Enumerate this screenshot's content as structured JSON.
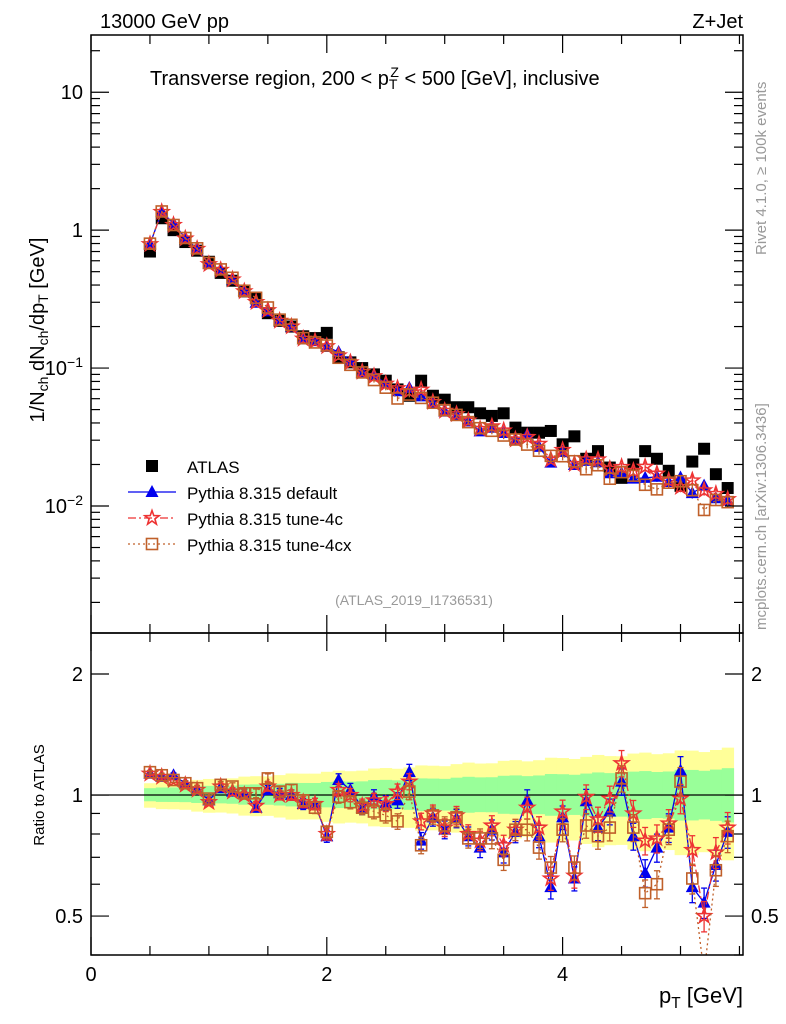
{
  "header": {
    "energy_label": "13000 GeV pp",
    "process_label": "Z+Jet",
    "analysis_id": "(ATLAS_2019_I1736531)",
    "rivet_label": "Rivet 4.1.0, ≥ 100k events",
    "mcplots_label": "mcplots.cern.ch [arXiv:1306.3436]"
  },
  "chart_data": {
    "type": "scatter",
    "title_segments": [
      {
        "t": "Transverse region, 200 < p",
        "s": ""
      },
      {
        "t": "T",
        "s": "sub"
      },
      {
        "t": "Z",
        "s": "sup"
      },
      {
        "t": " < 500 [GeV], inclusive",
        "s": ""
      }
    ],
    "ylabel_segments": [
      {
        "t": "1/N",
        "s": ""
      },
      {
        "t": "ch",
        "s": "sub"
      },
      {
        "t": " dN",
        "s": ""
      },
      {
        "t": "ch",
        "s": "sub"
      },
      {
        "t": "/dp",
        "s": ""
      },
      {
        "t": "T",
        "s": "sub"
      },
      {
        "t": " [GeV]",
        "s": ""
      }
    ],
    "xlabel_segments": [
      {
        "t": "p",
        "s": ""
      },
      {
        "t": "T",
        "s": "sub"
      },
      {
        "t": " [GeV]",
        "s": ""
      }
    ],
    "ratio_ylabel": "Ratio to ATLAS",
    "xlim": [
      0,
      5.53
    ],
    "ylim": [
      0.0012,
      26
    ],
    "yscale": "log",
    "ratio_ylim": [
      0.4,
      2.53
    ],
    "ratio_yscale": "log",
    "x_ticks": [
      {
        "v": 0,
        "label": "0"
      },
      {
        "v": 2,
        "label": "2"
      },
      {
        "v": 4,
        "label": "4"
      }
    ],
    "y_ticks": [
      {
        "v": 0.01,
        "base": "10",
        "exp": "−2"
      },
      {
        "v": 0.1,
        "base": "10",
        "exp": "−1"
      },
      {
        "v": 1,
        "base": "1",
        "exp": ""
      },
      {
        "v": 10,
        "base": "10",
        "exp": ""
      }
    ],
    "ratio_ticks": [
      {
        "v": 0.5,
        "label": "0.5"
      },
      {
        "v": 1,
        "label": "1"
      },
      {
        "v": 2,
        "label": "2"
      }
    ],
    "legend_position": "lower-left",
    "x": [
      0.5,
      0.6,
      0.7,
      0.8,
      0.9,
      1.0,
      1.1,
      1.2,
      1.3,
      1.4,
      1.5,
      1.6,
      1.7,
      1.8,
      1.9,
      2.0,
      2.1,
      2.2,
      2.3,
      2.4,
      2.5,
      2.6,
      2.7,
      2.8,
      2.9,
      3.0,
      3.1,
      3.2,
      3.3,
      3.4,
      3.5,
      3.6,
      3.7,
      3.8,
      3.9,
      4.0,
      4.1,
      4.2,
      4.3,
      4.4,
      4.5,
      4.6,
      4.7,
      4.8,
      4.9,
      5.0,
      5.1,
      5.2,
      5.3,
      5.4
    ],
    "reference": {
      "name": "ATLAS",
      "color": "#000000",
      "values": [
        0.7,
        1.22,
        1.0,
        0.82,
        0.71,
        0.59,
        0.49,
        0.43,
        0.36,
        0.32,
        0.25,
        0.22,
        0.2,
        0.17,
        0.165,
        0.18,
        0.12,
        0.11,
        0.1,
        0.09,
        0.081,
        0.07,
        0.063,
        0.081,
        0.063,
        0.059,
        0.052,
        0.052,
        0.047,
        0.045,
        0.047,
        0.037,
        0.034,
        0.034,
        0.035,
        0.028,
        0.032,
        0.022,
        0.025,
        0.019,
        0.016,
        0.02,
        0.025,
        0.022,
        0.018,
        0.014,
        0.021,
        0.026,
        0.017,
        0.0135
      ]
    },
    "series": [
      {
        "name": "Pythia 8.315 default",
        "color": "#0000ee",
        "marker": "triangle",
        "line": "solid",
        "ratio": [
          1.13,
          1.11,
          1.12,
          1.07,
          1.03,
          0.97,
          1.04,
          1.02,
          1.01,
          0.93,
          1.03,
          1.01,
          1.0,
          0.95,
          0.95,
          0.79,
          1.09,
          1.03,
          0.93,
          0.99,
          0.955,
          0.97,
          1.14,
          0.77,
          0.88,
          0.82,
          0.875,
          0.79,
          0.74,
          0.82,
          0.72,
          0.81,
          0.97,
          0.79,
          0.59,
          0.88,
          0.62,
          0.965,
          0.83,
          0.91,
          1.08,
          0.79,
          0.64,
          0.74,
          0.83,
          1.15,
          0.59,
          0.54,
          0.67,
          0.81
        ]
      },
      {
        "name": "Pythia 8.315 tune-4c",
        "color": "#ee3333",
        "marker": "star",
        "line": "dashdot",
        "ratio": [
          1.13,
          1.11,
          1.09,
          1.06,
          1.03,
          0.96,
          1.05,
          1.02,
          1.0,
          0.94,
          1.05,
          1.0,
          1.0,
          0.96,
          0.95,
          0.8,
          1.03,
          1.0,
          0.94,
          0.97,
          0.95,
          1.02,
          1.08,
          0.86,
          0.9,
          0.83,
          0.89,
          0.8,
          0.77,
          0.84,
          0.75,
          0.82,
          0.93,
          0.83,
          0.62,
          0.91,
          0.63,
          0.99,
          0.87,
          0.98,
          1.2,
          0.9,
          0.77,
          0.78,
          0.85,
          0.98,
          0.73,
          0.5,
          0.72,
          0.83
        ]
      },
      {
        "name": "Pythia 8.315 tune-4cx",
        "color": "#c0602a",
        "marker": "open-square",
        "line": "dotted",
        "ratio": [
          1.14,
          1.12,
          1.09,
          1.07,
          1.04,
          0.98,
          1.06,
          1.05,
          1.01,
          1.01,
          1.1,
          1.02,
          1.03,
          0.97,
          0.93,
          0.81,
          0.99,
          0.96,
          0.93,
          0.91,
          0.89,
          0.86,
          1.02,
          0.75,
          0.89,
          0.84,
          0.88,
          0.78,
          0.78,
          0.78,
          0.69,
          0.82,
          0.82,
          0.74,
          0.66,
          0.82,
          0.66,
          0.84,
          0.79,
          0.83,
          1.1,
          0.83,
          0.57,
          0.6,
          0.82,
          1.08,
          0.62,
          0.36,
          0.65,
          0.79
        ]
      }
    ],
    "mc_rel_err_range": [
      0.01,
      0.09
    ],
    "bands": {
      "yellow": {
        "color": "#ffff99",
        "upper": [
          1.07,
          1.3
        ],
        "lower": [
          0.93,
          0.7
        ]
      },
      "green": {
        "color": "#99ff99",
        "upper": [
          1.04,
          1.16
        ],
        "lower": [
          0.965,
          0.86
        ]
      }
    }
  }
}
